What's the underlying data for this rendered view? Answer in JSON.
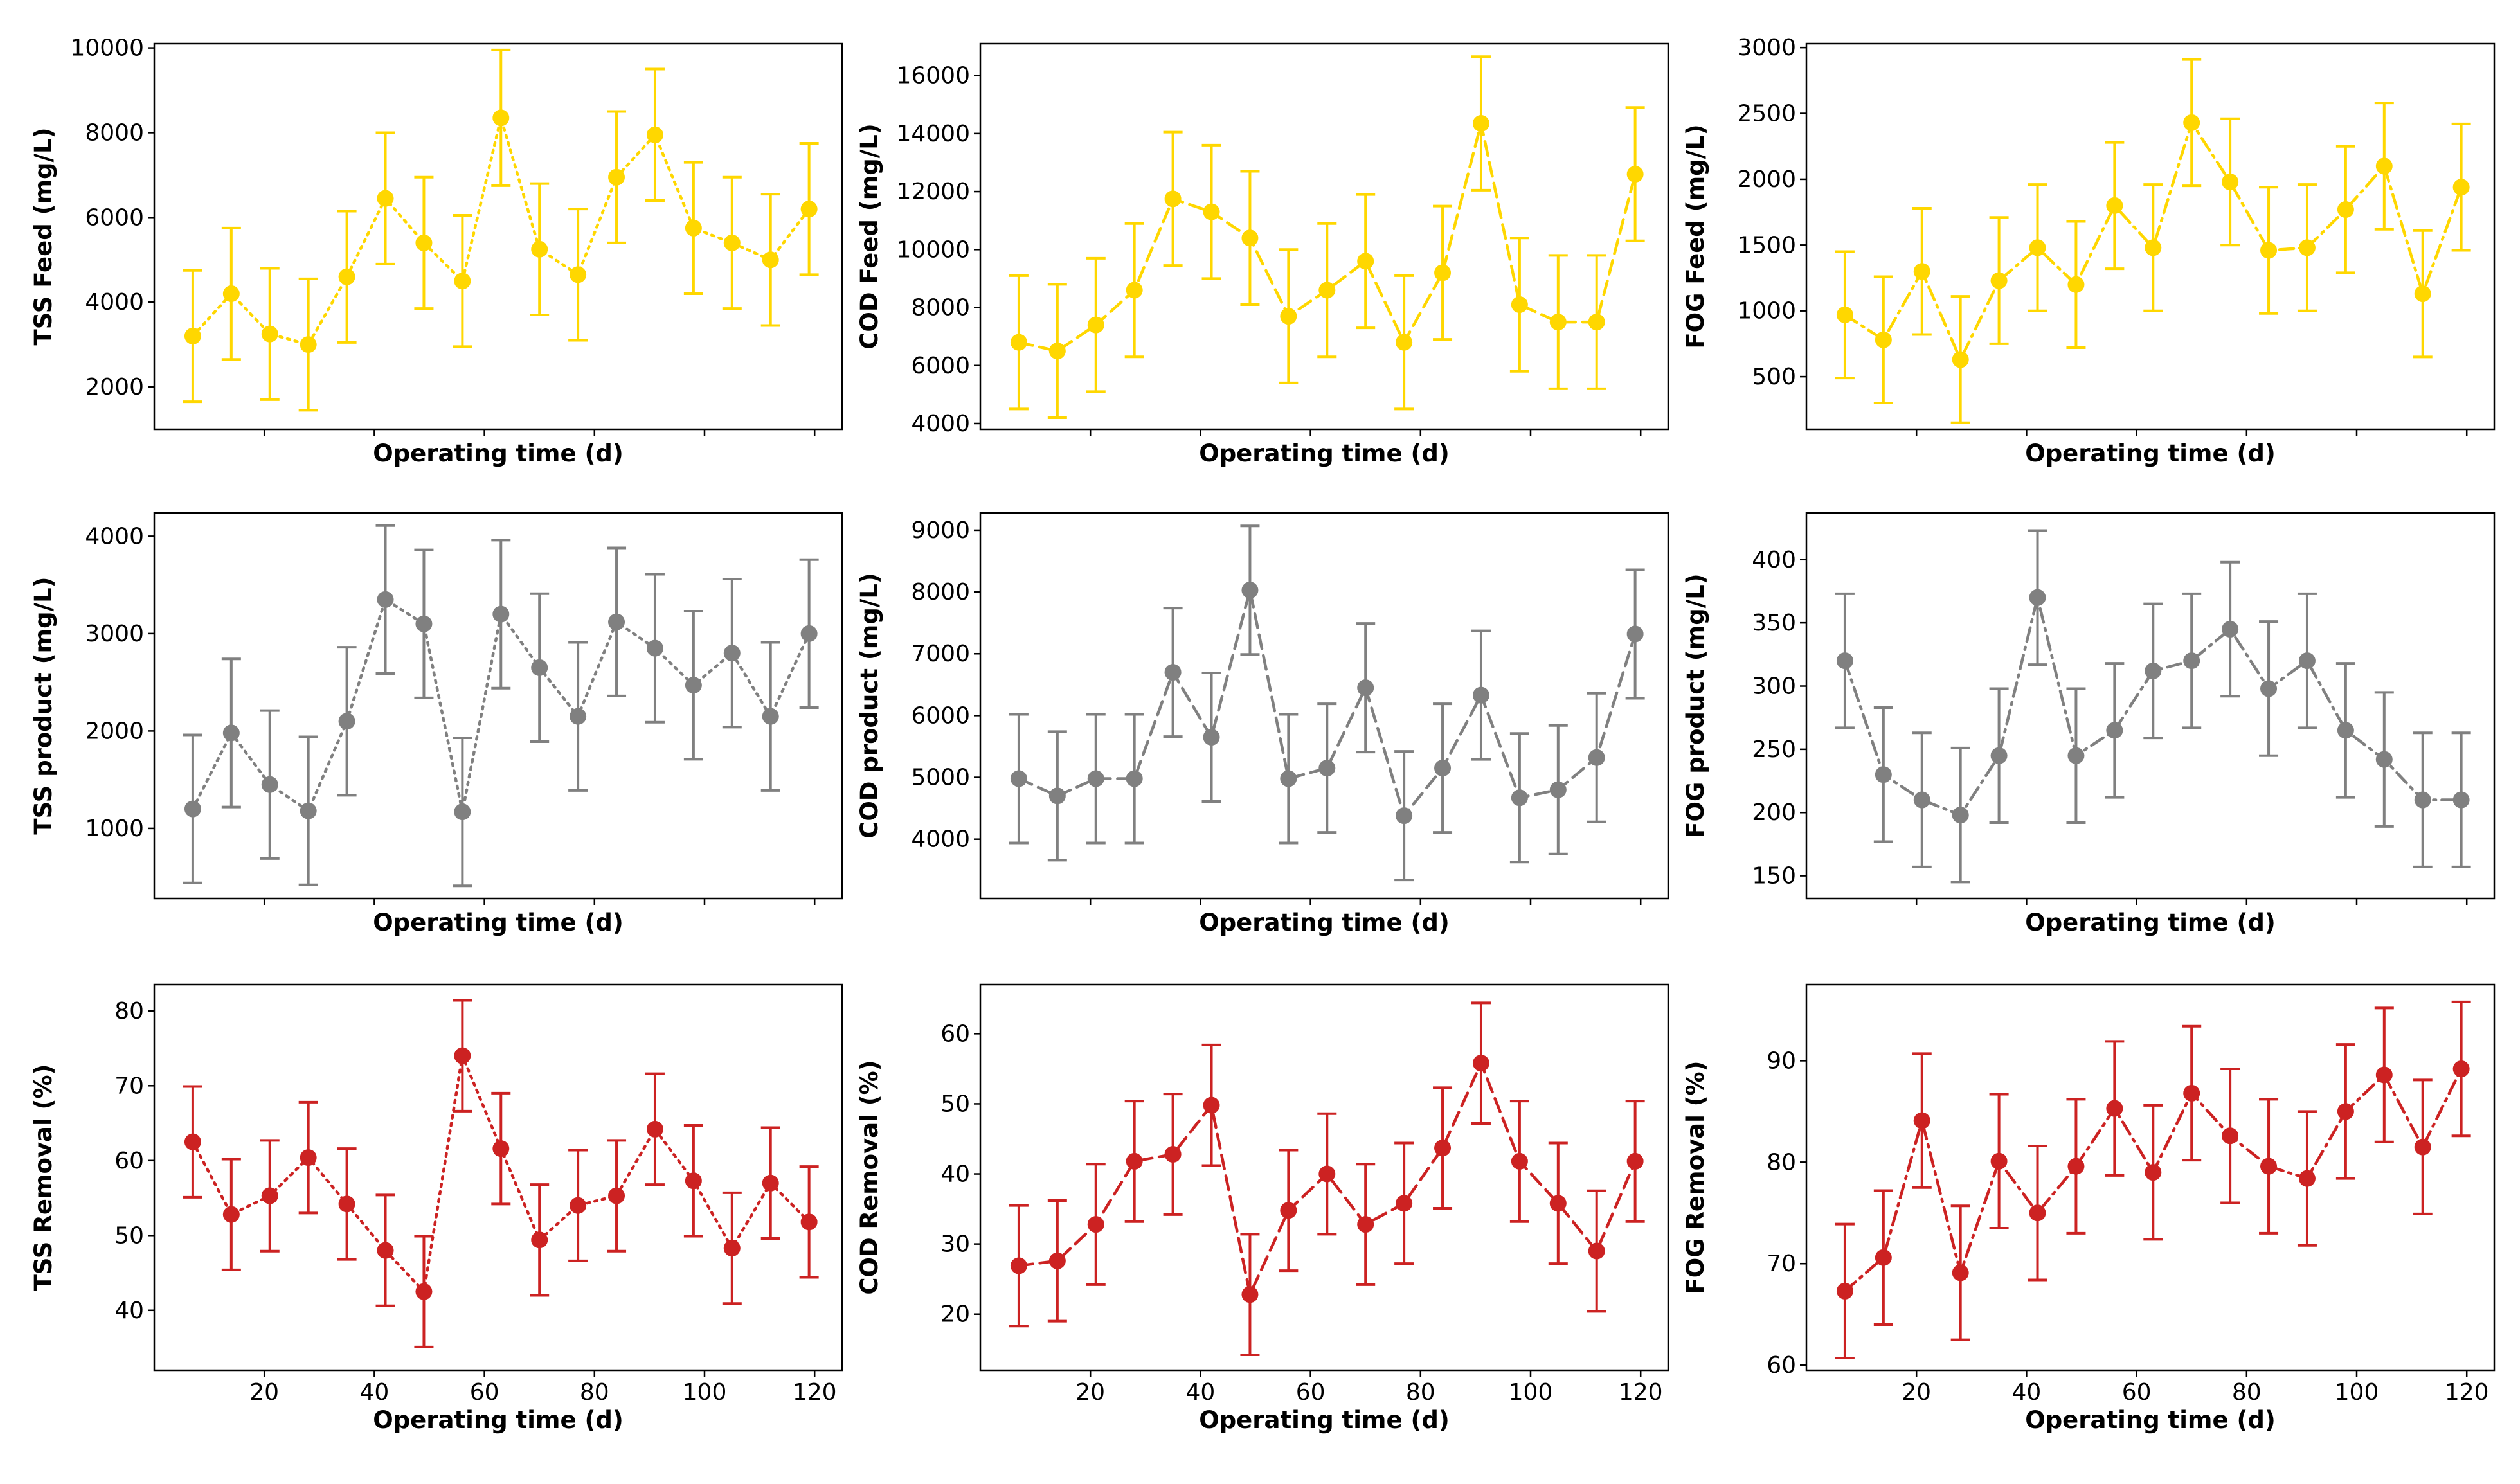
{
  "chart_data": [
    {
      "type": "line",
      "id": "tss-feed",
      "xlabel": "Operating time (d)",
      "ylabel": "TSS Feed (mg/L)",
      "color": "#FFD700",
      "linestyle": "dotted",
      "xlim": [
        0,
        125
      ],
      "ylim": [
        1000,
        10100
      ],
      "xticks": [
        20,
        40,
        60,
        80,
        100,
        120
      ],
      "show_xticklabels": false,
      "yticks": [
        2000,
        4000,
        6000,
        8000,
        10000
      ],
      "x": [
        7,
        14,
        21,
        28,
        35,
        42,
        49,
        56,
        63,
        70,
        77,
        84,
        91,
        98,
        105,
        112,
        119
      ],
      "values": [
        3200,
        4200,
        3250,
        3000,
        4600,
        6450,
        5400,
        4500,
        8350,
        5250,
        4650,
        6950,
        7950,
        5750,
        5400,
        5000,
        6200
      ],
      "errors": [
        1550,
        1550,
        1550,
        1550,
        1550,
        1550,
        1550,
        1550,
        1600,
        1550,
        1550,
        1550,
        1550,
        1550,
        1550,
        1550,
        1550
      ]
    },
    {
      "type": "line",
      "id": "cod-feed",
      "xlabel": "Operating time (d)",
      "ylabel": "COD Feed (mg/L)",
      "color": "#FFD700",
      "linestyle": "dashed",
      "xlim": [
        0,
        125
      ],
      "ylim": [
        3800,
        17100
      ],
      "xticks": [
        20,
        40,
        60,
        80,
        100,
        120
      ],
      "show_xticklabels": false,
      "yticks": [
        4000,
        6000,
        8000,
        10000,
        12000,
        14000,
        16000
      ],
      "x": [
        7,
        14,
        21,
        28,
        35,
        42,
        49,
        56,
        63,
        70,
        77,
        84,
        91,
        98,
        105,
        112,
        119
      ],
      "values": [
        6800,
        6500,
        7400,
        8600,
        11750,
        11300,
        10400,
        7700,
        8600,
        9600,
        6800,
        9200,
        14350,
        8100,
        7500,
        7500,
        12600
      ],
      "errors": [
        2300,
        2300,
        2300,
        2300,
        2300,
        2300,
        2300,
        2300,
        2300,
        2300,
        2300,
        2300,
        2300,
        2300,
        2300,
        2300,
        2300
      ]
    },
    {
      "type": "line",
      "id": "fog-feed",
      "xlabel": "Operating time (d)",
      "ylabel": "FOG Feed (mg/L)",
      "color": "#FFD700",
      "linestyle": "dashdot",
      "xlim": [
        0,
        125
      ],
      "ylim": [
        100,
        3030
      ],
      "xticks": [
        20,
        40,
        60,
        80,
        100,
        120
      ],
      "show_xticklabels": false,
      "yticks": [
        500,
        1000,
        1500,
        2000,
        2500,
        3000
      ],
      "x": [
        7,
        14,
        21,
        28,
        35,
        42,
        49,
        56,
        63,
        70,
        77,
        84,
        91,
        98,
        105,
        112,
        119
      ],
      "values": [
        970,
        780,
        1300,
        630,
        1230,
        1480,
        1200,
        1800,
        1480,
        2430,
        1980,
        1460,
        1480,
        1770,
        2100,
        1130,
        1940
      ],
      "errors": [
        480,
        480,
        480,
        480,
        480,
        480,
        480,
        480,
        480,
        480,
        480,
        480,
        480,
        480,
        480,
        480,
        480
      ]
    },
    {
      "type": "line",
      "id": "tss-product",
      "xlabel": "Operating time (d)",
      "ylabel": "TSS product (mg/L)",
      "color": "#808080",
      "linestyle": "dotted",
      "xlim": [
        0,
        125
      ],
      "ylim": [
        280,
        4240
      ],
      "xticks": [
        20,
        40,
        60,
        80,
        100,
        120
      ],
      "show_xticklabels": false,
      "yticks": [
        1000,
        2000,
        3000,
        4000
      ],
      "x": [
        7,
        14,
        21,
        28,
        35,
        42,
        49,
        56,
        63,
        70,
        77,
        84,
        91,
        98,
        105,
        112,
        119
      ],
      "values": [
        1200,
        1980,
        1450,
        1180,
        2100,
        3350,
        3100,
        1170,
        3200,
        2650,
        2150,
        3120,
        2850,
        2470,
        2800,
        2150,
        3000
      ],
      "errors": [
        760,
        760,
        760,
        760,
        760,
        760,
        760,
        760,
        760,
        760,
        760,
        760,
        760,
        760,
        760,
        760,
        760
      ]
    },
    {
      "type": "line",
      "id": "cod-product",
      "xlabel": "Operating time (d)",
      "ylabel": "COD product (mg/L)",
      "color": "#808080",
      "linestyle": "dashed",
      "xlim": [
        0,
        125
      ],
      "ylim": [
        3040,
        9280
      ],
      "xticks": [
        20,
        40,
        60,
        80,
        100,
        120
      ],
      "show_xticklabels": false,
      "yticks": [
        4000,
        5000,
        6000,
        7000,
        8000,
        9000
      ],
      "x": [
        7,
        14,
        21,
        28,
        35,
        42,
        49,
        56,
        63,
        70,
        77,
        84,
        91,
        98,
        105,
        112,
        119
      ],
      "values": [
        4980,
        4700,
        4980,
        4980,
        6700,
        5650,
        8030,
        4980,
        5150,
        6450,
        4380,
        5150,
        6330,
        4670,
        4800,
        5320,
        7320
      ],
      "errors": [
        1040,
        1040,
        1040,
        1040,
        1040,
        1040,
        1040,
        1040,
        1040,
        1040,
        1040,
        1040,
        1040,
        1040,
        1040,
        1040,
        1040
      ]
    },
    {
      "type": "line",
      "id": "fog-product",
      "xlabel": "Operating time (d)",
      "ylabel": "FOG product (mg/L)",
      "color": "#808080",
      "linestyle": "dashdot",
      "xlim": [
        0,
        125
      ],
      "ylim": [
        132,
        437
      ],
      "xticks": [
        20,
        40,
        60,
        80,
        100,
        120
      ],
      "show_xticklabels": false,
      "yticks": [
        150,
        200,
        250,
        300,
        350,
        400
      ],
      "x": [
        7,
        14,
        21,
        28,
        35,
        42,
        49,
        56,
        63,
        70,
        77,
        84,
        91,
        98,
        105,
        112,
        119
      ],
      "values": [
        320,
        230,
        210,
        198,
        245,
        370,
        245,
        265,
        312,
        320,
        345,
        298,
        320,
        265,
        242,
        210,
        210
      ],
      "errors": [
        53,
        53,
        53,
        53,
        53,
        53,
        53,
        53,
        53,
        53,
        53,
        53,
        53,
        53,
        53,
        53,
        53
      ]
    },
    {
      "type": "line",
      "id": "tss-removal",
      "xlabel": "Operating time (d)",
      "ylabel": "TSS Removal (%)",
      "color": "#CC2222",
      "linestyle": "dotted",
      "xlim": [
        0,
        125
      ],
      "ylim": [
        32,
        83.5
      ],
      "xticks": [
        20,
        40,
        60,
        80,
        100,
        120
      ],
      "show_xticklabels": true,
      "yticks": [
        40,
        50,
        60,
        70,
        80
      ],
      "x": [
        7,
        14,
        21,
        28,
        35,
        42,
        49,
        56,
        63,
        70,
        77,
        84,
        91,
        98,
        105,
        112,
        119
      ],
      "values": [
        62.5,
        52.8,
        55.3,
        60.4,
        54.2,
        48.0,
        42.5,
        74.0,
        61.6,
        49.4,
        54.0,
        55.3,
        64.2,
        57.3,
        48.3,
        57.0,
        51.8
      ],
      "errors": [
        7.4,
        7.4,
        7.4,
        7.4,
        7.4,
        7.4,
        7.4,
        7.4,
        7.4,
        7.4,
        7.4,
        7.4,
        7.4,
        7.4,
        7.4,
        7.4,
        7.4
      ]
    },
    {
      "type": "line",
      "id": "cod-removal",
      "xlabel": "Operating time (d)",
      "ylabel": "COD Removal (%)",
      "color": "#CC2222",
      "linestyle": "dashed",
      "xlim": [
        0,
        125
      ],
      "ylim": [
        12,
        67
      ],
      "xticks": [
        20,
        40,
        60,
        80,
        100,
        120
      ],
      "show_xticklabels": true,
      "yticks": [
        20,
        30,
        40,
        50,
        60
      ],
      "x": [
        7,
        14,
        21,
        28,
        35,
        42,
        49,
        56,
        63,
        70,
        77,
        84,
        91,
        98,
        105,
        112,
        119
      ],
      "values": [
        26.9,
        27.6,
        32.8,
        41.8,
        42.8,
        49.8,
        22.8,
        34.8,
        40.0,
        32.8,
        35.8,
        43.7,
        55.8,
        41.8,
        35.8,
        29.0,
        41.8
      ],
      "errors": [
        8.6,
        8.6,
        8.6,
        8.6,
        8.6,
        8.6,
        8.6,
        8.6,
        8.6,
        8.6,
        8.6,
        8.6,
        8.6,
        8.6,
        8.6,
        8.6,
        8.6
      ]
    },
    {
      "type": "line",
      "id": "fog-removal",
      "xlabel": "Operating time (d)",
      "ylabel": "FOG Removal (%)",
      "color": "#CC2222",
      "linestyle": "dashdot",
      "xlim": [
        0,
        125
      ],
      "ylim": [
        59.5,
        97.5
      ],
      "xticks": [
        20,
        40,
        60,
        80,
        100,
        120
      ],
      "show_xticklabels": true,
      "yticks": [
        60,
        70,
        80,
        90
      ],
      "x": [
        7,
        14,
        21,
        28,
        35,
        42,
        49,
        56,
        63,
        70,
        77,
        84,
        91,
        98,
        105,
        112,
        119
      ],
      "values": [
        67.3,
        70.6,
        84.1,
        69.1,
        80.1,
        75.0,
        79.6,
        85.3,
        79.0,
        86.8,
        82.6,
        79.6,
        78.4,
        85.0,
        88.6,
        81.5,
        89.2
      ],
      "errors": [
        6.6,
        6.6,
        6.6,
        6.6,
        6.6,
        6.6,
        6.6,
        6.6,
        6.6,
        6.6,
        6.6,
        6.6,
        6.6,
        6.6,
        6.6,
        6.6,
        6.6
      ]
    }
  ]
}
